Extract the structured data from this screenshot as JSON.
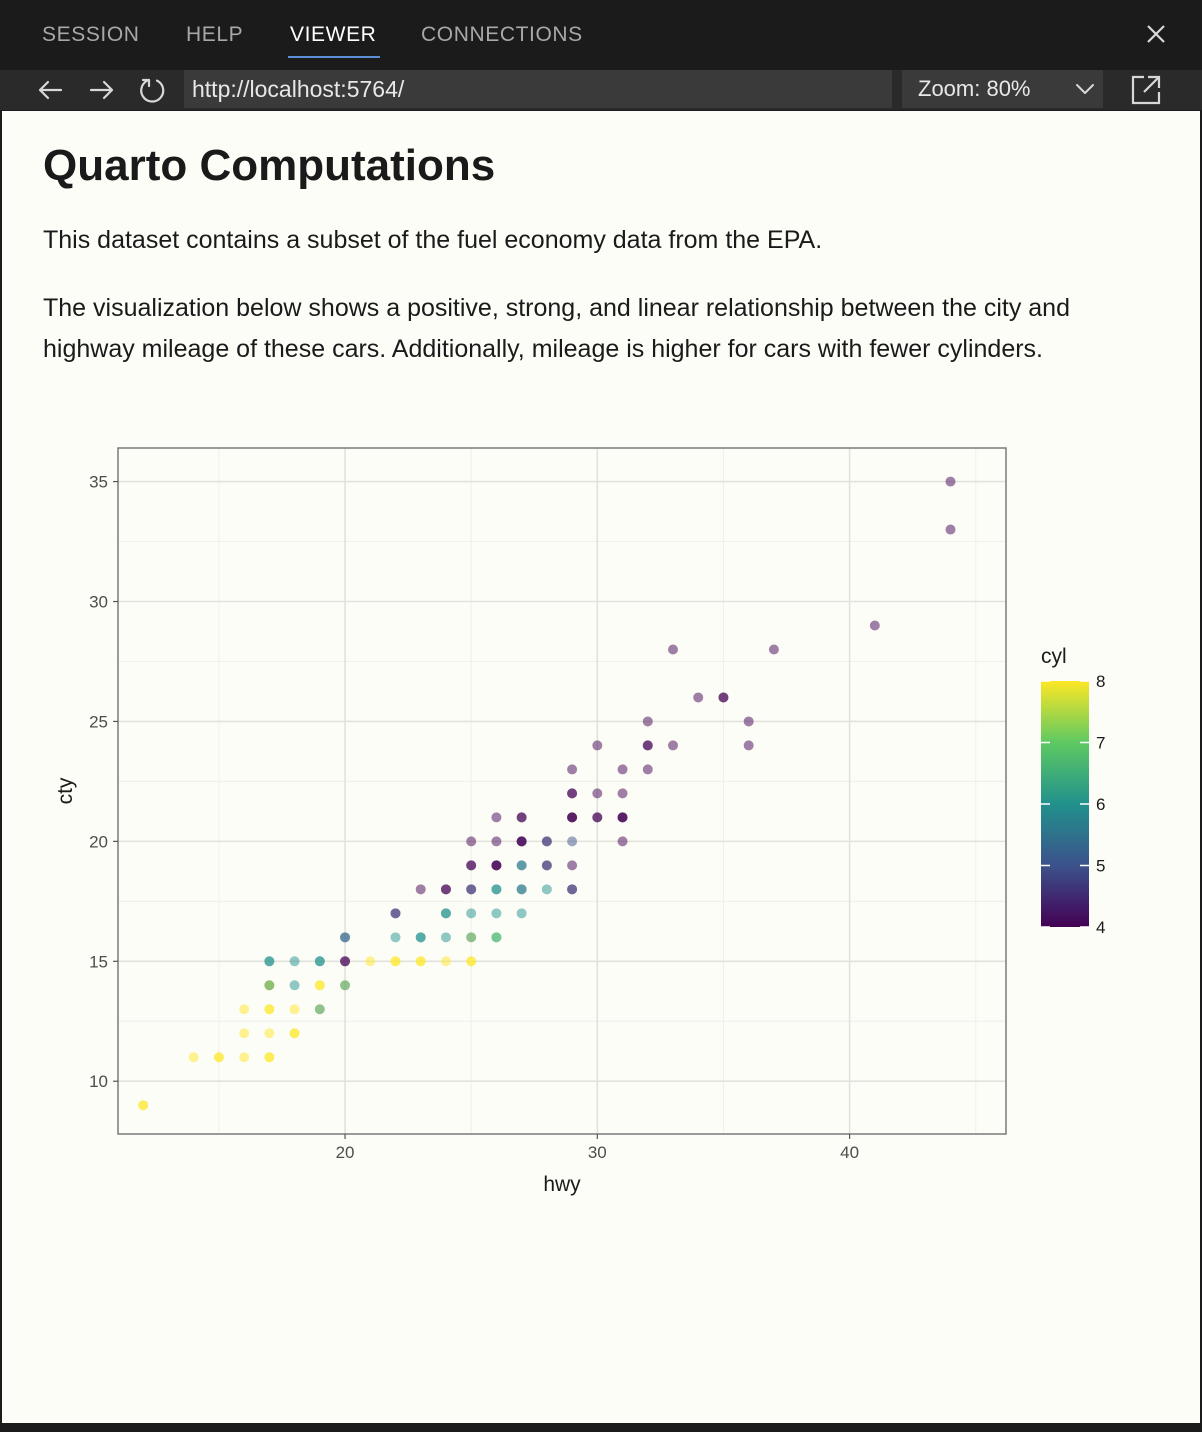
{
  "tabs": [
    {
      "label": "SESSION",
      "active": false
    },
    {
      "label": "HELP",
      "active": false
    },
    {
      "label": "VIEWER",
      "active": true
    },
    {
      "label": "CONNECTIONS",
      "active": false
    }
  ],
  "icons": {
    "close": "close-icon",
    "back": "arrow-left-icon",
    "forward": "arrow-right-icon",
    "reload": "reload-icon",
    "chevron": "chevron-down-icon",
    "external": "open-external-icon"
  },
  "address_bar": {
    "value": "http://localhost:5764/"
  },
  "zoom": {
    "label": "Zoom: 80%"
  },
  "doc": {
    "title": "Quarto Computations",
    "para1": "This dataset contains a subset of the fuel economy data from the EPA.",
    "para2": "The visualization below shows a positive, strong, and linear relationship between the city and highway mileage of these cars. Additionally, mileage is higher for cars with fewer cylinders."
  },
  "colors": {
    "tabbar_bg": "#1b1b1b",
    "navbar_bg": "#2a2a2a",
    "active_tab_underline": "#5a8fd6",
    "page_bg": "#fdfdf8"
  },
  "chart_data": {
    "type": "scatter",
    "xlabel": "hwy",
    "ylabel": "cty",
    "xlim": [
      11,
      46.2
    ],
    "ylim": [
      7.8,
      36.4
    ],
    "xticks": [
      20,
      30,
      40
    ],
    "yticks": [
      10,
      15,
      20,
      25,
      30,
      35
    ],
    "grid": true,
    "legend": {
      "title": "cyl",
      "placement": "right",
      "type": "colorbar",
      "ticks": [
        4,
        5,
        6,
        7,
        8
      ],
      "colormap": "viridis"
    },
    "point_alpha": 0.5,
    "points": [
      {
        "x": 44,
        "y": 35,
        "cyl": 4
      },
      {
        "x": 44,
        "y": 33,
        "cyl": 4
      },
      {
        "x": 41,
        "y": 29,
        "cyl": 4
      },
      {
        "x": 33,
        "y": 28,
        "cyl": 4
      },
      {
        "x": 37,
        "y": 28,
        "cyl": 4
      },
      {
        "x": 34,
        "y": 26,
        "cyl": 4
      },
      {
        "x": 35,
        "y": 26,
        "cyl": 4
      },
      {
        "x": 35,
        "y": 26,
        "cyl": 4
      },
      {
        "x": 32,
        "y": 25,
        "cyl": 4
      },
      {
        "x": 36,
        "y": 25,
        "cyl": 4
      },
      {
        "x": 30,
        "y": 24,
        "cyl": 4
      },
      {
        "x": 32,
        "y": 24,
        "cyl": 4
      },
      {
        "x": 32,
        "y": 24,
        "cyl": 4
      },
      {
        "x": 33,
        "y": 24,
        "cyl": 4
      },
      {
        "x": 36,
        "y": 24,
        "cyl": 4
      },
      {
        "x": 29,
        "y": 23,
        "cyl": 4
      },
      {
        "x": 31,
        "y": 23,
        "cyl": 4
      },
      {
        "x": 32,
        "y": 23,
        "cyl": 4
      },
      {
        "x": 29,
        "y": 22,
        "cyl": 4
      },
      {
        "x": 29,
        "y": 22,
        "cyl": 4
      },
      {
        "x": 30,
        "y": 22,
        "cyl": 4
      },
      {
        "x": 31,
        "y": 22,
        "cyl": 4
      },
      {
        "x": 26,
        "y": 21,
        "cyl": 4
      },
      {
        "x": 27,
        "y": 21,
        "cyl": 4
      },
      {
        "x": 27,
        "y": 21,
        "cyl": 4
      },
      {
        "x": 29,
        "y": 21,
        "cyl": 4
      },
      {
        "x": 29,
        "y": 21,
        "cyl": 4
      },
      {
        "x": 29,
        "y": 21,
        "cyl": 4
      },
      {
        "x": 30,
        "y": 21,
        "cyl": 4
      },
      {
        "x": 30,
        "y": 21,
        "cyl": 4
      },
      {
        "x": 31,
        "y": 21,
        "cyl": 4
      },
      {
        "x": 31,
        "y": 21,
        "cyl": 4
      },
      {
        "x": 31,
        "y": 21,
        "cyl": 4
      },
      {
        "x": 25,
        "y": 20,
        "cyl": 4
      },
      {
        "x": 26,
        "y": 20,
        "cyl": 4
      },
      {
        "x": 27,
        "y": 20,
        "cyl": 4
      },
      {
        "x": 27,
        "y": 20,
        "cyl": 4
      },
      {
        "x": 27,
        "y": 20,
        "cyl": 4
      },
      {
        "x": 28,
        "y": 20,
        "cyl": 4
      },
      {
        "x": 28,
        "y": 20,
        "cyl": 5
      },
      {
        "x": 29,
        "y": 20,
        "cyl": 5
      },
      {
        "x": 31,
        "y": 20,
        "cyl": 4
      },
      {
        "x": 25,
        "y": 19,
        "cyl": 4
      },
      {
        "x": 25,
        "y": 19,
        "cyl": 4
      },
      {
        "x": 26,
        "y": 19,
        "cyl": 4
      },
      {
        "x": 26,
        "y": 19,
        "cyl": 4
      },
      {
        "x": 26,
        "y": 19,
        "cyl": 4
      },
      {
        "x": 27,
        "y": 19,
        "cyl": 5
      },
      {
        "x": 27,
        "y": 19,
        "cyl": 6
      },
      {
        "x": 28,
        "y": 19,
        "cyl": 4
      },
      {
        "x": 28,
        "y": 19,
        "cyl": 5
      },
      {
        "x": 29,
        "y": 19,
        "cyl": 4
      },
      {
        "x": 23,
        "y": 18,
        "cyl": 4
      },
      {
        "x": 24,
        "y": 18,
        "cyl": 4
      },
      {
        "x": 24,
        "y": 18,
        "cyl": 4
      },
      {
        "x": 25,
        "y": 18,
        "cyl": 4
      },
      {
        "x": 25,
        "y": 18,
        "cyl": 5
      },
      {
        "x": 26,
        "y": 18,
        "cyl": 6
      },
      {
        "x": 26,
        "y": 18,
        "cyl": 6
      },
      {
        "x": 27,
        "y": 18,
        "cyl": 5
      },
      {
        "x": 27,
        "y": 18,
        "cyl": 6
      },
      {
        "x": 28,
        "y": 18,
        "cyl": 6
      },
      {
        "x": 29,
        "y": 18,
        "cyl": 4
      },
      {
        "x": 29,
        "y": 18,
        "cyl": 5
      },
      {
        "x": 22,
        "y": 17,
        "cyl": 4
      },
      {
        "x": 22,
        "y": 17,
        "cyl": 5
      },
      {
        "x": 24,
        "y": 17,
        "cyl": 6
      },
      {
        "x": 24,
        "y": 17,
        "cyl": 6
      },
      {
        "x": 25,
        "y": 17,
        "cyl": 6
      },
      {
        "x": 26,
        "y": 17,
        "cyl": 6
      },
      {
        "x": 27,
        "y": 17,
        "cyl": 6
      },
      {
        "x": 20,
        "y": 16,
        "cyl": 6
      },
      {
        "x": 20,
        "y": 16,
        "cyl": 5
      },
      {
        "x": 22,
        "y": 16,
        "cyl": 6
      },
      {
        "x": 23,
        "y": 16,
        "cyl": 6
      },
      {
        "x": 23,
        "y": 16,
        "cyl": 6
      },
      {
        "x": 24,
        "y": 16,
        "cyl": 6
      },
      {
        "x": 25,
        "y": 16,
        "cyl": 8
      },
      {
        "x": 25,
        "y": 16,
        "cyl": 6
      },
      {
        "x": 26,
        "y": 16,
        "cyl": 6
      },
      {
        "x": 26,
        "y": 16,
        "cyl": 7
      },
      {
        "x": 17,
        "y": 15,
        "cyl": 6
      },
      {
        "x": 17,
        "y": 15,
        "cyl": 6
      },
      {
        "x": 18,
        "y": 15,
        "cyl": 6
      },
      {
        "x": 19,
        "y": 15,
        "cyl": 6
      },
      {
        "x": 19,
        "y": 15,
        "cyl": 6
      },
      {
        "x": 20,
        "y": 15,
        "cyl": 4
      },
      {
        "x": 20,
        "y": 15,
        "cyl": 4
      },
      {
        "x": 21,
        "y": 15,
        "cyl": 8
      },
      {
        "x": 22,
        "y": 15,
        "cyl": 8
      },
      {
        "x": 22,
        "y": 15,
        "cyl": 8
      },
      {
        "x": 23,
        "y": 15,
        "cyl": 8
      },
      {
        "x": 23,
        "y": 15,
        "cyl": 8
      },
      {
        "x": 24,
        "y": 15,
        "cyl": 8
      },
      {
        "x": 25,
        "y": 15,
        "cyl": 8
      },
      {
        "x": 25,
        "y": 15,
        "cyl": 8
      },
      {
        "x": 17,
        "y": 14,
        "cyl": 8
      },
      {
        "x": 17,
        "y": 14,
        "cyl": 8
      },
      {
        "x": 17,
        "y": 14,
        "cyl": 6
      },
      {
        "x": 18,
        "y": 14,
        "cyl": 6
      },
      {
        "x": 19,
        "y": 14,
        "cyl": 8
      },
      {
        "x": 19,
        "y": 14,
        "cyl": 8
      },
      {
        "x": 20,
        "y": 14,
        "cyl": 8
      },
      {
        "x": 20,
        "y": 14,
        "cyl": 6
      },
      {
        "x": 16,
        "y": 13,
        "cyl": 8
      },
      {
        "x": 17,
        "y": 13,
        "cyl": 8
      },
      {
        "x": 17,
        "y": 13,
        "cyl": 8
      },
      {
        "x": 18,
        "y": 13,
        "cyl": 8
      },
      {
        "x": 19,
        "y": 13,
        "cyl": 8
      },
      {
        "x": 19,
        "y": 13,
        "cyl": 6
      },
      {
        "x": 16,
        "y": 12,
        "cyl": 8
      },
      {
        "x": 17,
        "y": 12,
        "cyl": 8
      },
      {
        "x": 18,
        "y": 12,
        "cyl": 8
      },
      {
        "x": 18,
        "y": 12,
        "cyl": 8
      },
      {
        "x": 14,
        "y": 11,
        "cyl": 8
      },
      {
        "x": 15,
        "y": 11,
        "cyl": 8
      },
      {
        "x": 15,
        "y": 11,
        "cyl": 8
      },
      {
        "x": 16,
        "y": 11,
        "cyl": 8
      },
      {
        "x": 17,
        "y": 11,
        "cyl": 8
      },
      {
        "x": 17,
        "y": 11,
        "cyl": 8
      },
      {
        "x": 12,
        "y": 9,
        "cyl": 8
      },
      {
        "x": 12,
        "y": 9,
        "cyl": 8
      }
    ]
  }
}
